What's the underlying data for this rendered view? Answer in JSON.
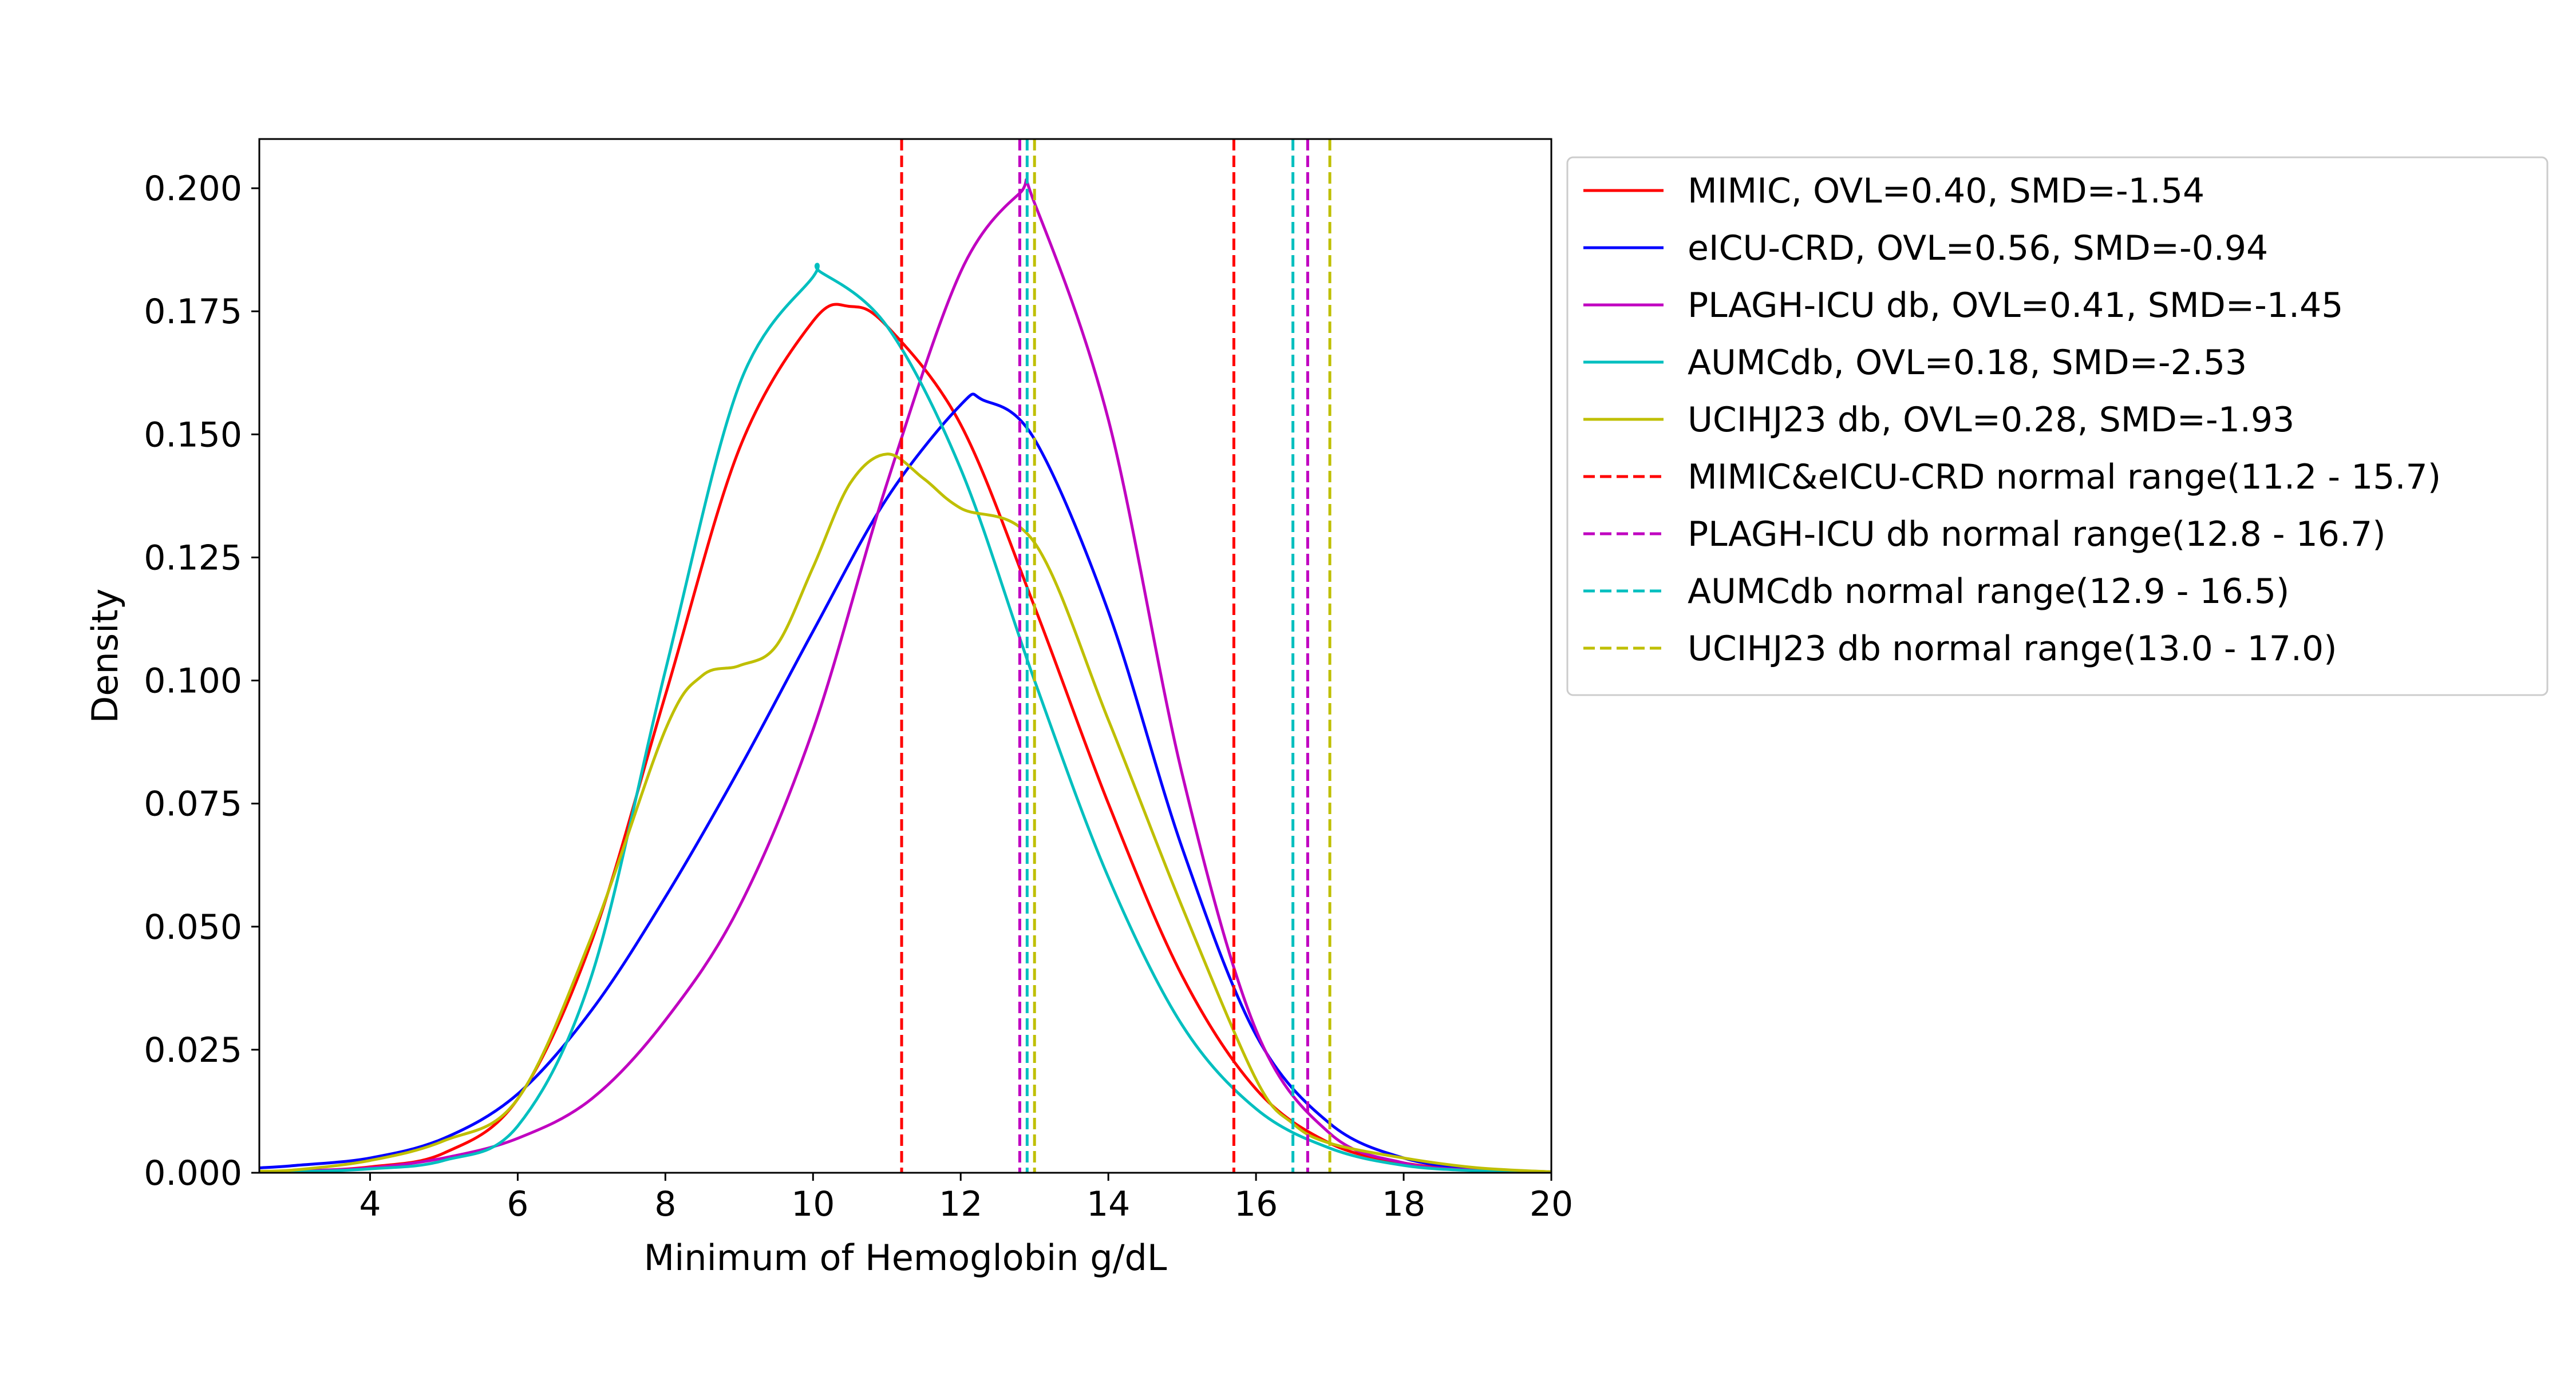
{
  "chart_data": {
    "type": "line",
    "xlabel": "Minimum of Hemoglobin g/dL",
    "ylabel": "Density",
    "xlim": [
      2.5,
      20
    ],
    "ylim": [
      0,
      0.21
    ],
    "x_ticks": [
      4,
      6,
      8,
      10,
      12,
      14,
      16,
      18,
      20
    ],
    "y_ticks": [
      0.0,
      0.025,
      0.05,
      0.075,
      0.1,
      0.125,
      0.15,
      0.175,
      0.2
    ],
    "x_tick_labels": [
      "4",
      "6",
      "8",
      "10",
      "12",
      "14",
      "16",
      "18",
      "20"
    ],
    "y_tick_labels": [
      "0.000",
      "0.025",
      "0.050",
      "0.075",
      "0.100",
      "0.125",
      "0.150",
      "0.175",
      "0.200"
    ],
    "grid": false,
    "legend_position": "outside-right-top",
    "series": [
      {
        "name": "MIMIC, OVL=0.40, SMD=-1.54",
        "color": "#ff0000",
        "x": [
          2.5,
          3,
          4,
          5,
          6,
          7,
          8,
          9,
          10,
          10.5,
          11,
          12,
          13,
          14,
          15,
          16,
          17,
          18,
          19,
          20
        ],
        "y": [
          0.0001,
          0.0003,
          0.0012,
          0.004,
          0.015,
          0.047,
          0.097,
          0.147,
          0.173,
          0.176,
          0.172,
          0.152,
          0.115,
          0.075,
          0.04,
          0.017,
          0.006,
          0.002,
          0.0005,
          0.0001
        ]
      },
      {
        "name": "eICU-CRD, OVL=0.56, SMD=-0.94",
        "color": "#0000ff",
        "x": [
          2.5,
          3,
          4,
          5,
          6,
          7,
          8,
          9,
          10,
          11,
          12,
          12.3,
          13,
          14,
          15,
          16,
          17,
          18,
          19,
          20
        ],
        "y": [
          0.001,
          0.0015,
          0.003,
          0.007,
          0.016,
          0.033,
          0.056,
          0.082,
          0.11,
          0.137,
          0.156,
          0.157,
          0.149,
          0.114,
          0.066,
          0.028,
          0.01,
          0.003,
          0.0008,
          0.0002
        ]
      },
      {
        "name": "PLAGH-ICU db, OVL=0.41, SMD=-1.45",
        "color": "#c000c0",
        "x": [
          2.5,
          3,
          4,
          5,
          6,
          7,
          8,
          9,
          10,
          11,
          12,
          12.8,
          13,
          14,
          15,
          16,
          17,
          18,
          19,
          20
        ],
        "y": [
          0.0002,
          0.0004,
          0.001,
          0.003,
          0.007,
          0.015,
          0.031,
          0.054,
          0.09,
          0.14,
          0.183,
          0.199,
          0.197,
          0.153,
          0.081,
          0.029,
          0.008,
          0.002,
          0.0005,
          0.0001
        ]
      },
      {
        "name": "AUMCdb, OVL=0.18, SMD=-2.53",
        "color": "#00bfbf",
        "x": [
          2.5,
          3,
          4,
          5,
          6,
          7,
          8,
          9,
          10,
          10.1,
          11,
          12,
          13,
          14,
          15,
          16,
          17,
          18,
          19,
          20
        ],
        "y": [
          0.0001,
          0.0002,
          0.0008,
          0.0025,
          0.0095,
          0.04,
          0.102,
          0.16,
          0.182,
          0.183,
          0.172,
          0.143,
          0.1,
          0.06,
          0.03,
          0.013,
          0.005,
          0.0015,
          0.0004,
          0.0001
        ]
      },
      {
        "name": "UCIHJ23 db, OVL=0.28, SMD=-1.93",
        "color": "#bfbf00",
        "x": [
          2.5,
          3,
          4,
          5,
          6,
          7,
          8,
          8.5,
          9,
          9.5,
          10,
          10.5,
          11,
          11.5,
          12,
          13,
          14,
          15,
          16,
          16.5,
          17,
          18,
          19,
          20
        ],
        "y": [
          0.0003,
          0.0006,
          0.0025,
          0.0065,
          0.015,
          0.048,
          0.09,
          0.101,
          0.103,
          0.107,
          0.123,
          0.14,
          0.146,
          0.141,
          0.135,
          0.128,
          0.092,
          0.054,
          0.019,
          0.01,
          0.006,
          0.003,
          0.001,
          0.0002
        ]
      }
    ],
    "reference_lines": [
      {
        "name": "MIMIC&eICU-CRD normal range(11.2 - 15.7)",
        "color": "#ff0000",
        "values": [
          11.2,
          15.7
        ]
      },
      {
        "name": "PLAGH-ICU db normal range(12.8 - 16.7)",
        "color": "#c000c0",
        "values": [
          12.8,
          16.7
        ]
      },
      {
        "name": "AUMCdb normal range(12.9 - 16.5)",
        "color": "#00bfbf",
        "values": [
          12.9,
          16.5
        ]
      },
      {
        "name": "UCIHJ23 db normal range(13.0 - 17.0)",
        "color": "#bfbf00",
        "values": [
          13.0,
          17.0
        ]
      }
    ]
  }
}
